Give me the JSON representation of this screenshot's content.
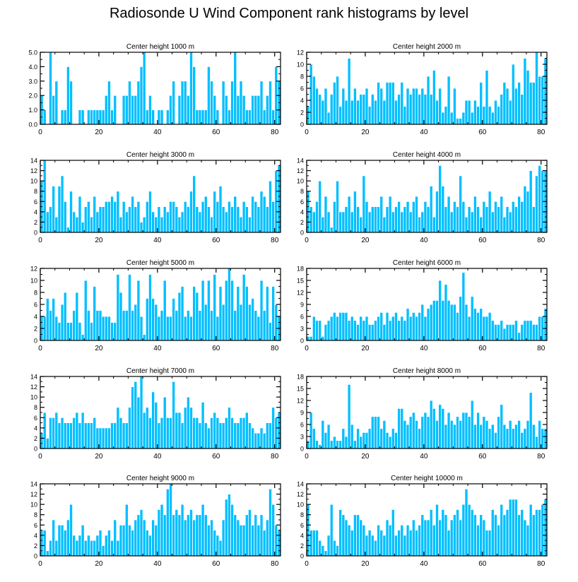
{
  "title": "Radiosonde U Wind Component rank histograms by level",
  "colors": {
    "bar": "#00bfff",
    "bar_edge": "#ffffff",
    "axis": "#000000"
  },
  "chart_data": [
    {
      "type": "bar",
      "title": "Center height 1000 m",
      "xlim": [
        0,
        82
      ],
      "ylim": [
        0,
        5
      ],
      "xticks": [
        0,
        20,
        40,
        60,
        80
      ],
      "xtick_labels": [
        "0",
        "20",
        "40",
        "60",
        "80"
      ],
      "yticks": [
        0,
        1,
        2,
        3,
        4,
        5
      ],
      "ytick_labels": [
        "0.0",
        "1.0",
        "2.0",
        "3.0",
        "4.0",
        "5.0"
      ],
      "values": [
        2,
        1,
        0,
        5,
        2,
        3,
        0,
        1,
        1,
        4,
        3,
        0,
        0,
        1,
        1,
        0,
        1,
        1,
        1,
        1,
        1,
        1,
        2,
        3,
        1,
        2,
        0,
        0,
        2,
        2,
        3,
        2,
        2,
        3,
        4,
        5,
        1,
        2,
        1,
        0,
        1,
        1,
        0,
        1,
        2,
        3,
        0,
        2,
        3,
        3,
        2,
        5,
        4,
        1,
        1,
        1,
        1,
        4,
        3,
        2,
        1,
        0,
        3,
        2,
        1,
        3,
        5,
        2,
        3,
        2,
        1,
        1,
        2,
        2,
        2,
        3,
        1,
        2,
        3,
        1,
        4,
        3
      ]
    },
    {
      "type": "bar",
      "title": "Center height 2000 m",
      "xlim": [
        0,
        82
      ],
      "ylim": [
        0,
        12
      ],
      "xticks": [
        0,
        20,
        40,
        60,
        80
      ],
      "xtick_labels": [
        "0",
        "20",
        "40",
        "60",
        "80"
      ],
      "yticks": [
        0,
        2,
        4,
        6,
        8,
        10,
        12
      ],
      "ytick_labels": [
        "0",
        "2",
        "4",
        "6",
        "8",
        "10",
        "12"
      ],
      "values": [
        3,
        10,
        8,
        6,
        5,
        4,
        6,
        2,
        5,
        7,
        8,
        3,
        6,
        4,
        11,
        4,
        6,
        4,
        5,
        5,
        6,
        3,
        5,
        4,
        7,
        6,
        4,
        7,
        7,
        7,
        4,
        5,
        7,
        3,
        6,
        5,
        6,
        6,
        5,
        6,
        5,
        8,
        5,
        9,
        4,
        6,
        2,
        3,
        8,
        2,
        6,
        1,
        1,
        2,
        4,
        4,
        2,
        4,
        3,
        7,
        3,
        9,
        3,
        2,
        4,
        3,
        5,
        7,
        6,
        4,
        10,
        6,
        7,
        5,
        11,
        9,
        7,
        7,
        12,
        8,
        8,
        11
      ]
    },
    {
      "type": "bar",
      "title": "Center height 3000 m",
      "xlim": [
        0,
        82
      ],
      "ylim": [
        0,
        14
      ],
      "xticks": [
        0,
        20,
        40,
        60,
        80
      ],
      "xtick_labels": [
        "0",
        "20",
        "40",
        "60",
        "80"
      ],
      "yticks": [
        0,
        2,
        4,
        6,
        8,
        10,
        12,
        14
      ],
      "ytick_labels": [
        "0",
        "2",
        "4",
        "6",
        "8",
        "10",
        "12",
        "14"
      ],
      "values": [
        10,
        14,
        4,
        5,
        9,
        3,
        9,
        11,
        6,
        1,
        8,
        4,
        3,
        7,
        2,
        5,
        6,
        3,
        7,
        4,
        5,
        5,
        6,
        6,
        7,
        6,
        8,
        3,
        6,
        4,
        5,
        7,
        5,
        6,
        2,
        3,
        6,
        8,
        4,
        3,
        5,
        3,
        5,
        4,
        6,
        6,
        5,
        3,
        4,
        6,
        5,
        8,
        11,
        5,
        4,
        6,
        7,
        5,
        3,
        8,
        6,
        9,
        5,
        4,
        6,
        5,
        7,
        5,
        3,
        6,
        5,
        3,
        7,
        6,
        5,
        8,
        7,
        5,
        10,
        6,
        12,
        13
      ]
    },
    {
      "type": "bar",
      "title": "Center height 4000 m",
      "xlim": [
        0,
        82
      ],
      "ylim": [
        0,
        14
      ],
      "xticks": [
        0,
        20,
        40,
        60,
        80
      ],
      "xtick_labels": [
        "0",
        "20",
        "40",
        "60",
        "80"
      ],
      "yticks": [
        0,
        2,
        4,
        6,
        8,
        10,
        12,
        14
      ],
      "ytick_labels": [
        "0",
        "2",
        "4",
        "6",
        "8",
        "10",
        "12",
        "14"
      ],
      "values": [
        8,
        5,
        4,
        6,
        10,
        3,
        7,
        4,
        1,
        6,
        10,
        4,
        4,
        5,
        7,
        4,
        8,
        5,
        3,
        11,
        6,
        4,
        5,
        5,
        5,
        7,
        3,
        5,
        7,
        4,
        5,
        6,
        4,
        5,
        6,
        4,
        6,
        7,
        3,
        4,
        6,
        5,
        9,
        3,
        8,
        13,
        9,
        5,
        7,
        4,
        6,
        5,
        11,
        6,
        3,
        5,
        4,
        7,
        5,
        3,
        6,
        5,
        8,
        4,
        6,
        5,
        7,
        3,
        5,
        4,
        6,
        5,
        7,
        6,
        9,
        8,
        12,
        5,
        11,
        13,
        12,
        12
      ]
    },
    {
      "type": "bar",
      "title": "Center height 5000 m",
      "xlim": [
        0,
        82
      ],
      "ylim": [
        0,
        12
      ],
      "xticks": [
        0,
        20,
        40,
        60,
        80
      ],
      "xtick_labels": [
        "0",
        "20",
        "40",
        "60",
        "80"
      ],
      "yticks": [
        0,
        2,
        4,
        6,
        8,
        10,
        12
      ],
      "ytick_labels": [
        "0",
        "2",
        "4",
        "6",
        "8",
        "10",
        "12"
      ],
      "values": [
        4,
        4,
        7,
        5,
        7,
        4,
        3,
        6,
        8,
        3,
        3,
        5,
        8,
        3,
        1,
        10,
        5,
        3,
        9,
        5,
        5,
        4,
        4,
        4,
        3,
        3,
        11,
        8,
        5,
        5,
        11,
        5,
        6,
        10,
        4,
        1,
        7,
        11,
        7,
        6,
        4,
        5,
        10,
        4,
        4,
        7,
        5,
        8,
        9,
        4,
        5,
        4,
        9,
        8,
        5,
        10,
        6,
        10,
        5,
        11,
        4,
        9,
        6,
        10,
        12,
        10,
        5,
        9,
        6,
        11,
        9,
        6,
        7,
        5,
        4,
        10,
        5,
        9,
        3,
        9,
        6,
        4
      ]
    },
    {
      "type": "bar",
      "title": "Center height 6000 m",
      "xlim": [
        0,
        82
      ],
      "ylim": [
        0,
        18
      ],
      "xticks": [
        0,
        20,
        40,
        60,
        80
      ],
      "xtick_labels": [
        "0",
        "20",
        "40",
        "60",
        "80"
      ],
      "yticks": [
        0,
        3,
        6,
        9,
        12,
        15,
        18
      ],
      "ytick_labels": [
        "0",
        "3",
        "6",
        "9",
        "12",
        "15",
        "18"
      ],
      "values": [
        1,
        1,
        6,
        5,
        5,
        1,
        4,
        5,
        6,
        7,
        6,
        7,
        7,
        7,
        5,
        6,
        5,
        4,
        6,
        5,
        6,
        4,
        4,
        5,
        6,
        7,
        4,
        7,
        5,
        6,
        7,
        5,
        6,
        5,
        8,
        6,
        7,
        6,
        7,
        9,
        6,
        8,
        9,
        10,
        10,
        15,
        10,
        14,
        10,
        9,
        9,
        7,
        11,
        17,
        9,
        6,
        11,
        8,
        7,
        8,
        6,
        6,
        7,
        5,
        4,
        4,
        5,
        3,
        4,
        4,
        4,
        5,
        2,
        4,
        5,
        5,
        5,
        4,
        4,
        6,
        6,
        8
      ]
    },
    {
      "type": "bar",
      "title": "Center height 7000 m",
      "xlim": [
        0,
        82
      ],
      "ylim": [
        0,
        14
      ],
      "xticks": [
        0,
        20,
        40,
        60,
        80
      ],
      "xtick_labels": [
        "0",
        "20",
        "40",
        "60",
        "80"
      ],
      "yticks": [
        0,
        2,
        4,
        6,
        8,
        10,
        12,
        14
      ],
      "ytick_labels": [
        "0",
        "2",
        "4",
        "6",
        "8",
        "10",
        "12",
        "14"
      ],
      "values": [
        3,
        7,
        2,
        6,
        6,
        7,
        5,
        6,
        5,
        5,
        5,
        6,
        7,
        5,
        7,
        5,
        5,
        5,
        6,
        4,
        4,
        4,
        4,
        4,
        5,
        5,
        8,
        6,
        5,
        5,
        8,
        12,
        13,
        10,
        14,
        7,
        8,
        6,
        11,
        9,
        5,
        6,
        10,
        6,
        6,
        13,
        7,
        7,
        5,
        8,
        10,
        8,
        6,
        6,
        5,
        9,
        5,
        4,
        6,
        7,
        6,
        5,
        5,
        6,
        8,
        6,
        5,
        5,
        6,
        6,
        7,
        5,
        4,
        3,
        3,
        4,
        3,
        5,
        5,
        8,
        6,
        7
      ]
    },
    {
      "type": "bar",
      "title": "Center height 8000 m",
      "xlim": [
        0,
        82
      ],
      "ylim": [
        0,
        18
      ],
      "xticks": [
        0,
        20,
        40,
        60,
        80
      ],
      "xtick_labels": [
        "0",
        "20",
        "40",
        "60",
        "80"
      ],
      "yticks": [
        0,
        3,
        6,
        9,
        12,
        15,
        18
      ],
      "ytick_labels": [
        "0",
        "3",
        "6",
        "9",
        "12",
        "15",
        "18"
      ],
      "values": [
        2,
        9,
        5,
        2,
        1,
        7,
        4,
        6,
        2,
        3,
        2,
        2,
        5,
        3,
        16,
        6,
        2,
        5,
        3,
        4,
        4,
        5,
        8,
        8,
        8,
        5,
        7,
        4,
        3,
        5,
        4,
        10,
        10,
        7,
        6,
        8,
        9,
        7,
        5,
        8,
        9,
        8,
        12,
        10,
        7,
        11,
        10,
        6,
        9,
        7,
        6,
        8,
        7,
        9,
        9,
        8,
        12,
        6,
        9,
        6,
        8,
        7,
        5,
        6,
        4,
        8,
        11,
        6,
        5,
        7,
        5,
        6,
        7,
        4,
        5,
        7,
        14,
        6,
        3,
        7,
        5,
        5
      ]
    },
    {
      "type": "bar",
      "title": "Center height 9000 m",
      "xlim": [
        0,
        82
      ],
      "ylim": [
        0,
        14
      ],
      "xticks": [
        0,
        20,
        40,
        60,
        80
      ],
      "xtick_labels": [
        "0",
        "20",
        "40",
        "60",
        "80"
      ],
      "yticks": [
        0,
        2,
        4,
        6,
        8,
        10,
        12,
        14
      ],
      "ytick_labels": [
        "0",
        "2",
        "4",
        "6",
        "8",
        "10",
        "12",
        "14"
      ],
      "values": [
        5,
        5,
        1,
        3,
        7,
        3,
        6,
        6,
        5,
        7,
        10,
        4,
        3,
        4,
        6,
        3,
        4,
        3,
        3,
        4,
        5,
        2,
        4,
        5,
        3,
        7,
        3,
        6,
        6,
        10,
        6,
        5,
        7,
        8,
        9,
        7,
        5,
        4,
        7,
        6,
        9,
        10,
        8,
        13,
        14,
        8,
        9,
        8,
        10,
        7,
        8,
        9,
        7,
        8,
        8,
        10,
        8,
        6,
        7,
        5,
        4,
        3,
        7,
        11,
        12,
        10,
        8,
        7,
        6,
        6,
        8,
        9,
        6,
        8,
        6,
        8,
        5,
        7,
        13,
        10,
        6,
        5
      ]
    },
    {
      "type": "bar",
      "title": "Center height 10000 m",
      "xlim": [
        0,
        82
      ],
      "ylim": [
        0,
        14
      ],
      "xticks": [
        0,
        20,
        40,
        60,
        80
      ],
      "xtick_labels": [
        "0",
        "20",
        "40",
        "60",
        "80"
      ],
      "yticks": [
        0,
        2,
        4,
        6,
        8,
        10,
        12,
        14
      ],
      "ytick_labels": [
        "0",
        "2",
        "4",
        "6",
        "8",
        "10",
        "12",
        "14"
      ],
      "values": [
        10,
        5,
        5,
        5,
        3,
        2,
        1,
        4,
        10,
        3,
        2,
        9,
        8,
        7,
        6,
        5,
        8,
        8,
        7,
        6,
        4,
        5,
        4,
        3,
        6,
        5,
        4,
        7,
        6,
        9,
        4,
        5,
        6,
        4,
        6,
        5,
        7,
        5,
        6,
        8,
        7,
        7,
        9,
        6,
        10,
        7,
        9,
        8,
        5,
        7,
        8,
        9,
        7,
        10,
        13,
        10,
        9,
        8,
        6,
        8,
        7,
        5,
        5,
        9,
        8,
        6,
        10,
        8,
        9,
        11,
        11,
        11,
        8,
        9,
        7,
        6,
        10,
        8,
        9,
        9,
        10,
        11
      ]
    }
  ]
}
